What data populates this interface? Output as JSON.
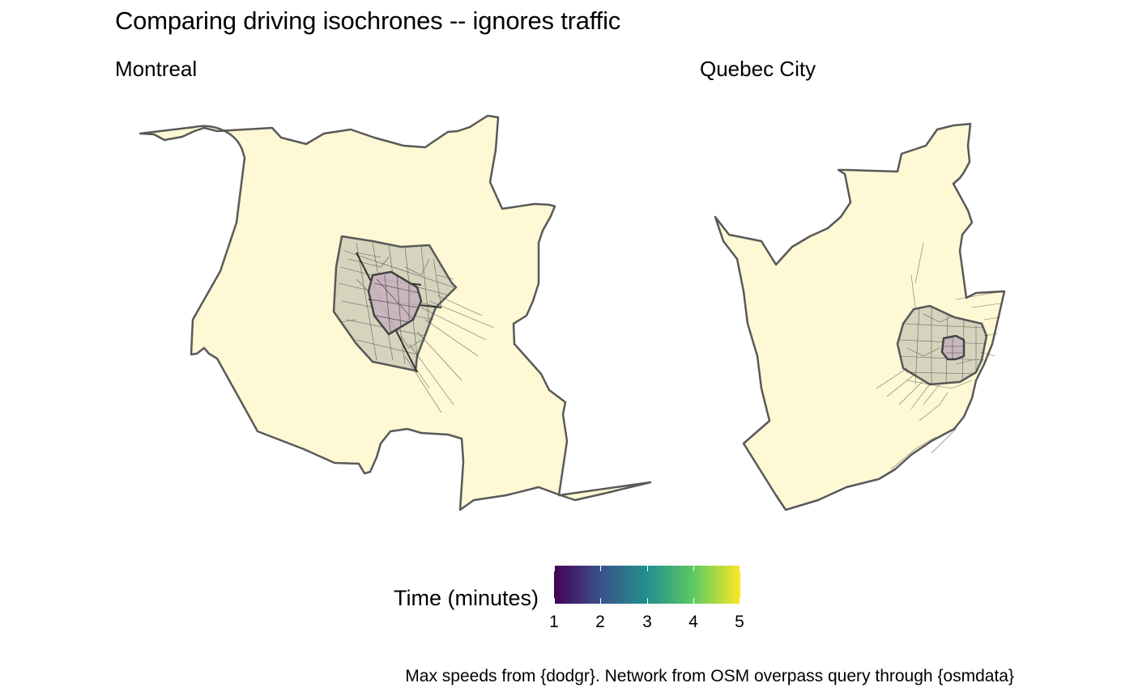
{
  "title": "Comparing driving isochrones -- ignores traffic",
  "panels": {
    "montreal": {
      "title": "Montreal"
    },
    "quebec": {
      "title": "Quebec City"
    }
  },
  "legend": {
    "title": "Time (minutes)",
    "ticks": [
      "1",
      "2",
      "3",
      "4",
      "5"
    ],
    "range": [
      1,
      5
    ],
    "palette": [
      "#440154",
      "#3b528b",
      "#21908c",
      "#5dc963",
      "#fde725"
    ]
  },
  "caption": "Max speeds from {dodgr}. Network from OSM overpass query through {osmdata}",
  "colors": {
    "land": "#fff8d4",
    "boundary": "#595959",
    "isochrone_outer": "#d4d2bc",
    "isochrone_inner": "#c8b4be",
    "road": "#3a3a3a"
  }
}
